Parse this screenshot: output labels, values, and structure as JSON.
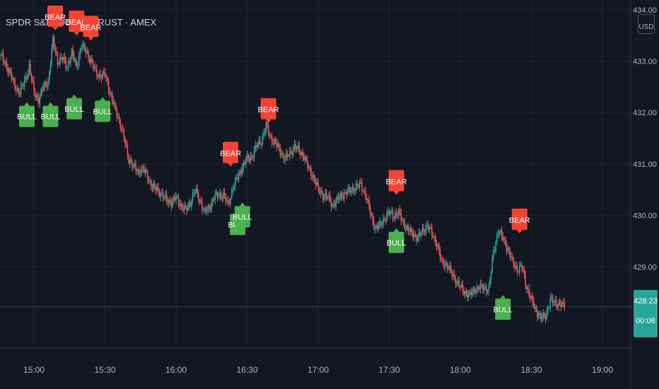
{
  "header": {
    "symbol_title": "SPDR S&P 500 ETF TRUST · AMEX",
    "currency": "USD"
  },
  "last_price": {
    "price": "428.23",
    "countdown": "00:08"
  },
  "colors": {
    "background": "#131722",
    "grid": "#1f2430",
    "axis_text": "#b2b5be",
    "up": "#26a69a",
    "down": "#ef5350",
    "bull_label": "#4caf50",
    "bear_label": "#f44336"
  },
  "chart_data": {
    "type": "candlestick",
    "x_axis": {
      "ticks": [
        "15:00",
        "15:30",
        "16:00",
        "16:30",
        "17:00",
        "17:30",
        "18:00",
        "18:30",
        "19:00"
      ]
    },
    "y_axis": {
      "ticks": [
        "429.00",
        "430.00",
        "431.00",
        "432.00",
        "433.00",
        "434.00"
      ],
      "range": [
        427.3,
        434.0
      ]
    },
    "series": [
      {
        "close_path": [
          [
            "14:46",
            433.1
          ],
          [
            "14:48",
            432.95
          ],
          [
            "14:50",
            432.75
          ],
          [
            "14:52",
            432.5
          ],
          [
            "14:54",
            432.4
          ],
          [
            "14:56",
            432.6
          ],
          [
            "14:58",
            432.9
          ],
          [
            "15:00",
            432.4
          ],
          [
            "15:02",
            432.25
          ],
          [
            "15:04",
            432.5
          ],
          [
            "15:06",
            432.6
          ],
          [
            "15:08",
            433.4
          ],
          [
            "15:10",
            433.0
          ],
          [
            "15:12",
            433.05
          ],
          [
            "15:14",
            432.9
          ],
          [
            "15:16",
            433.15
          ],
          [
            "15:18",
            432.9
          ],
          [
            "15:20",
            433.3
          ],
          [
            "15:22",
            433.2
          ],
          [
            "15:24",
            433.0
          ],
          [
            "15:26",
            432.8
          ],
          [
            "15:28",
            432.7
          ],
          [
            "15:30",
            432.75
          ],
          [
            "15:32",
            432.4
          ],
          [
            "15:34",
            432.1
          ],
          [
            "15:36",
            431.85
          ],
          [
            "15:38",
            431.5
          ],
          [
            "15:40",
            431.1
          ],
          [
            "15:42",
            430.95
          ],
          [
            "15:44",
            430.85
          ],
          [
            "15:46",
            430.9
          ],
          [
            "15:48",
            430.75
          ],
          [
            "15:50",
            430.55
          ],
          [
            "15:52",
            430.5
          ],
          [
            "15:54",
            430.4
          ],
          [
            "15:56",
            430.3
          ],
          [
            "15:58",
            430.25
          ],
          [
            "16:00",
            430.35
          ],
          [
            "16:02",
            430.2
          ],
          [
            "16:04",
            430.1
          ],
          [
            "16:06",
            430.25
          ],
          [
            "16:08",
            430.5
          ],
          [
            "16:10",
            430.3
          ],
          [
            "16:12",
            430.05
          ],
          [
            "16:14",
            430.15
          ],
          [
            "16:16",
            430.35
          ],
          [
            "16:18",
            430.4
          ],
          [
            "16:20",
            430.4
          ],
          [
            "16:22",
            430.2
          ],
          [
            "16:24",
            430.55
          ],
          [
            "16:26",
            430.75
          ],
          [
            "16:28",
            430.95
          ],
          [
            "16:30",
            431.1
          ],
          [
            "16:32",
            431.15
          ],
          [
            "16:34",
            431.35
          ],
          [
            "16:36",
            431.45
          ],
          [
            "16:38",
            431.75
          ],
          [
            "16:40",
            431.5
          ],
          [
            "16:42",
            431.4
          ],
          [
            "16:44",
            431.25
          ],
          [
            "16:46",
            431.1
          ],
          [
            "16:48",
            431.2
          ],
          [
            "16:50",
            431.35
          ],
          [
            "16:52",
            431.25
          ],
          [
            "16:54",
            431.15
          ],
          [
            "16:56",
            430.9
          ],
          [
            "16:58",
            430.75
          ],
          [
            "17:00",
            430.5
          ],
          [
            "17:02",
            430.4
          ],
          [
            "17:04",
            430.35
          ],
          [
            "17:06",
            430.2
          ],
          [
            "17:08",
            430.3
          ],
          [
            "17:10",
            430.4
          ],
          [
            "17:12",
            430.45
          ],
          [
            "17:14",
            430.5
          ],
          [
            "17:16",
            430.55
          ],
          [
            "17:18",
            430.6
          ],
          [
            "17:20",
            430.4
          ],
          [
            "17:22",
            430.05
          ],
          [
            "17:24",
            429.75
          ],
          [
            "17:26",
            429.8
          ],
          [
            "17:28",
            429.95
          ],
          [
            "17:30",
            430.05
          ],
          [
            "17:32",
            430.0
          ],
          [
            "17:34",
            430.05
          ],
          [
            "17:36",
            429.85
          ],
          [
            "17:38",
            429.7
          ],
          [
            "17:40",
            429.65
          ],
          [
            "17:42",
            429.55
          ],
          [
            "17:44",
            429.7
          ],
          [
            "17:46",
            429.8
          ],
          [
            "17:48",
            429.65
          ],
          [
            "17:50",
            429.45
          ],
          [
            "17:52",
            429.1
          ],
          [
            "17:54",
            429.05
          ],
          [
            "17:56",
            428.9
          ],
          [
            "17:58",
            428.75
          ],
          [
            "18:00",
            428.6
          ],
          [
            "18:02",
            428.5
          ],
          [
            "18:04",
            428.45
          ],
          [
            "18:06",
            428.55
          ],
          [
            "18:08",
            428.6
          ],
          [
            "18:10",
            428.6
          ],
          [
            "18:12",
            428.55
          ],
          [
            "18:14",
            429.3
          ],
          [
            "18:16",
            429.7
          ],
          [
            "18:18",
            429.55
          ],
          [
            "18:20",
            429.35
          ],
          [
            "18:22",
            429.1
          ],
          [
            "18:24",
            428.95
          ],
          [
            "18:26",
            429.0
          ],
          [
            "18:28",
            428.6
          ],
          [
            "18:30",
            428.35
          ],
          [
            "18:32",
            428.15
          ],
          [
            "18:34",
            428.0
          ],
          [
            "18:36",
            428.05
          ],
          [
            "18:38",
            428.35
          ],
          [
            "18:40",
            428.3
          ],
          [
            "18:42",
            428.28
          ],
          [
            "18:44",
            428.23
          ]
        ]
      }
    ],
    "annotations": [
      {
        "label": "BEAR",
        "time": "15:09",
        "price": 433.6
      },
      {
        "label": "BEAR",
        "time": "15:18",
        "price": 433.5
      },
      {
        "label": "BEAR",
        "time": "15:24",
        "price": 433.4
      },
      {
        "label": "BULL",
        "time": "14:57",
        "price": 432.2
      },
      {
        "label": "BULL",
        "time": "15:07",
        "price": 432.2
      },
      {
        "label": "BULL",
        "time": "15:17",
        "price": 432.35
      },
      {
        "label": "BULL",
        "time": "15:29",
        "price": 432.3
      },
      {
        "label": "BEAR",
        "time": "16:23",
        "price": 430.95
      },
      {
        "label": "BULL",
        "time": "16:26",
        "price": 430.1
      },
      {
        "label": "BULL",
        "time": "16:28",
        "price": 430.25
      },
      {
        "label": "BEAR",
        "time": "16:39",
        "price": 431.8
      },
      {
        "label": "BEAR",
        "time": "17:33",
        "price": 430.4
      },
      {
        "label": "BULL",
        "time": "17:33",
        "price": 429.75
      },
      {
        "label": "BEAR",
        "time": "18:25",
        "price": 429.65
      },
      {
        "label": "BULL",
        "time": "18:18",
        "price": 428.45
      }
    ],
    "last_price_line": 428.23,
    "legend": "none",
    "grid": true
  }
}
